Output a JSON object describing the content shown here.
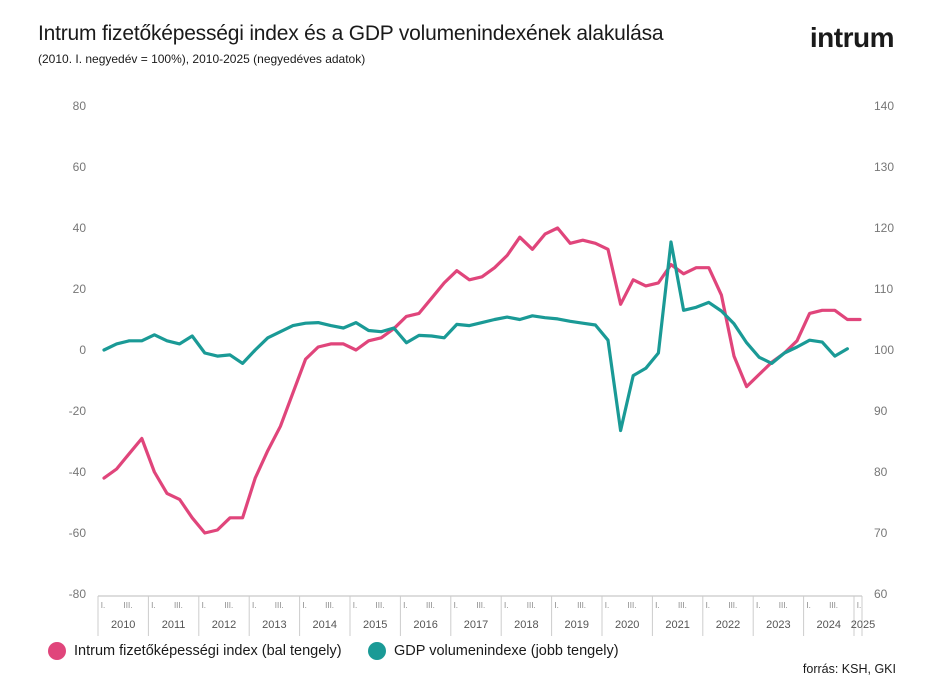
{
  "title": "Intrum fizetőképességi index és a GDP volumenindexének alakulása",
  "subtitle": "(2010. I. negyedév = 100%),  2010-2025 (negyedéves adatok)",
  "logo_text": "intrum",
  "source": "forrás: KSH, GKI",
  "chart_data": {
    "type": "line",
    "left_axis": {
      "ticks": [
        "80",
        "60",
        "40",
        "20",
        "0",
        "-20",
        "-40",
        "-60",
        "-80"
      ],
      "range": [
        -80,
        80
      ]
    },
    "right_axis": {
      "ticks": [
        "140",
        "130",
        "120",
        "110",
        "100",
        "90",
        "80",
        "70",
        "60"
      ],
      "range": [
        60,
        140
      ]
    },
    "years": [
      "2010",
      "2011",
      "2012",
      "2013",
      "2014",
      "2015",
      "2016",
      "2017",
      "2018",
      "2019",
      "2020",
      "2021",
      "2022",
      "2023",
      "2024",
      "2025"
    ],
    "quarter_labels": [
      "I.",
      "III."
    ],
    "x_unit": "quarter index from 2010 Q1",
    "series": [
      {
        "name": "Intrum fizetőképességi index (bal tengely)",
        "axis": "left",
        "color": "#e0457b",
        "values": [
          -42,
          -39,
          -34,
          -29,
          -40,
          -47,
          -49,
          -55,
          -60,
          -59,
          -55,
          -55,
          -42,
          -33,
          -25,
          -14,
          -3,
          1,
          2,
          2,
          0,
          3,
          4,
          7,
          11,
          12,
          17,
          22,
          26,
          23,
          24,
          27,
          31,
          37,
          33,
          38,
          40,
          35,
          36,
          35,
          33,
          15,
          23,
          21,
          22,
          28,
          25,
          27,
          27,
          18,
          -2,
          -12,
          -8,
          -4,
          -1,
          3,
          12,
          13,
          13,
          10,
          10
        ]
      },
      {
        "name": "GDP volumenindexe (jobb tengely)",
        "axis": "right",
        "color": "#1a9a96",
        "values": [
          100,
          101,
          101.5,
          101.5,
          102.5,
          101.5,
          101,
          102.3,
          99.5,
          99,
          99.2,
          97.8,
          100,
          102,
          103,
          104,
          104.4,
          104.5,
          104,
          103.6,
          104.5,
          103.2,
          103,
          103.6,
          101.2,
          102.4,
          102.3,
          102,
          104.2,
          104,
          104.5,
          105,
          105.4,
          105,
          105.6,
          105.3,
          105.1,
          104.7,
          104.4,
          104.1,
          101.6,
          86.8,
          95.8,
          97,
          99.5,
          117.7,
          106.5,
          107,
          107.8,
          106.4,
          104.3,
          101.2,
          98.8,
          97.8,
          99.5,
          100.5,
          101.6,
          101.3,
          99,
          100.2
        ]
      }
    ]
  }
}
